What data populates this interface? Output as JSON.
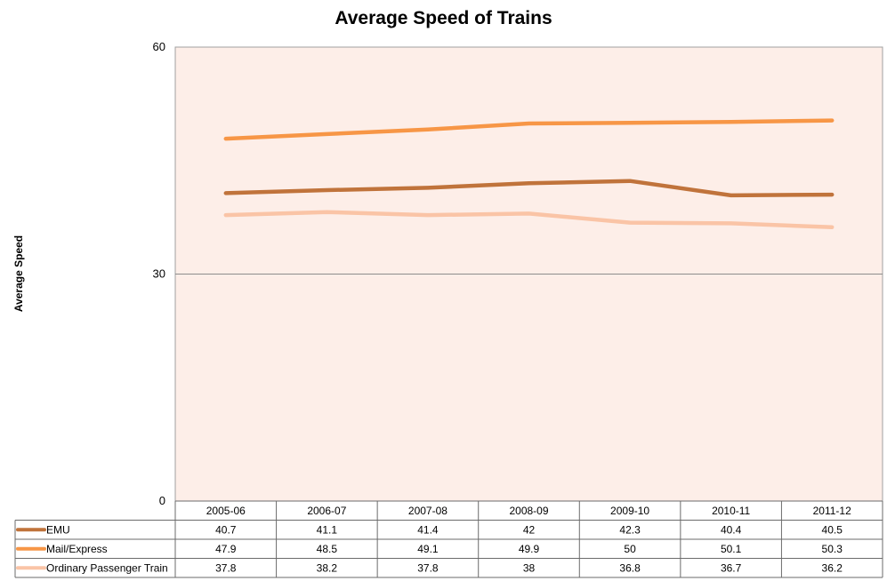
{
  "chart_data": {
    "type": "line",
    "title": "Average Speed of Trains",
    "xlabel": "",
    "ylabel": "Average Speed",
    "ylim": [
      0,
      60
    ],
    "yticks": [
      "0",
      "30",
      "60"
    ],
    "categories": [
      "2005-06",
      "2006-07",
      "2007-08",
      "2008-09",
      "2009-10",
      "2010-11",
      "2011-12"
    ],
    "series": [
      {
        "name": "EMU",
        "color": "#c0733b",
        "values": [
          40.7,
          41.1,
          41.4,
          42,
          42.3,
          40.4,
          40.5
        ]
      },
      {
        "name": "Mail/Express",
        "color": "#f79646",
        "values": [
          47.9,
          48.5,
          49.1,
          49.9,
          50,
          50.1,
          50.3
        ]
      },
      {
        "name": "Ordinary Passenger Train",
        "color": "#fac4a6",
        "values": [
          37.8,
          38.2,
          37.8,
          38,
          36.8,
          36.7,
          36.2
        ]
      }
    ],
    "grid": true,
    "legend": "data-table",
    "plot_background": "#fdeee8"
  }
}
